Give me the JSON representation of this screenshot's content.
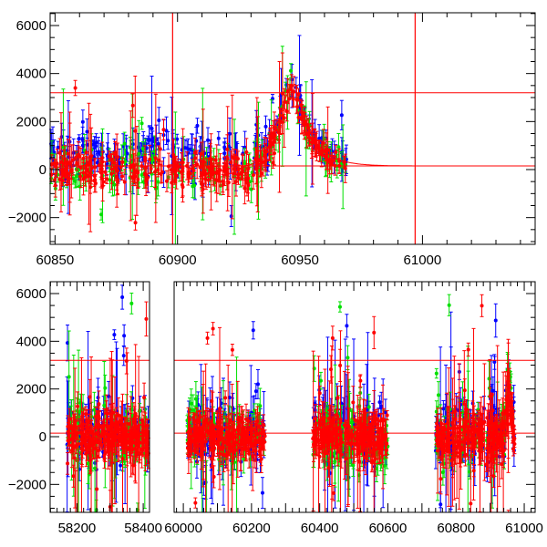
{
  "chart_data": [
    {
      "type": "scatter",
      "panel": "top",
      "title": "",
      "xlabel": "",
      "ylabel": "",
      "xlim": [
        60848,
        61046
      ],
      "ylim": [
        -3120,
        6530
      ],
      "x_ticks": [
        60850,
        60900,
        60950,
        61000
      ],
      "x_tick_labels": [
        "60850",
        "60900",
        "60950",
        "61000"
      ],
      "y_ticks": [
        -2000,
        0,
        2000,
        4000,
        6000
      ],
      "y_tick_labels": [
        "−2000",
        "0",
        "2000",
        "4000",
        "6000"
      ],
      "reference_lines": {
        "horizontal": [
          3200,
          150
        ],
        "vertical": [
          60898,
          60997
        ]
      },
      "model_curve": {
        "baseline": 150,
        "peak_x": 60948,
        "peak_y": 3550,
        "rise_width": 9,
        "decay_scale": 7
      },
      "data_range": [
        60848,
        60969
      ],
      "series": [
        {
          "name": "blue band",
          "color": "#0000ff",
          "offset": 650,
          "scatter": 450,
          "n": 220
        },
        {
          "name": "green band",
          "color": "#00e000",
          "offset": 0,
          "scatter": 500,
          "n": 160
        },
        {
          "name": "red band",
          "color": "#ff0000",
          "offset": 0,
          "scatter": 350,
          "n": 320
        }
      ]
    },
    {
      "type": "scatter",
      "panel": "bottom",
      "title": "",
      "xlabel": "",
      "ylabel": "",
      "broken_axis": [
        [
          58119,
          58419
        ],
        [
          59973,
          61032
        ]
      ],
      "ylim": [
        -3200,
        6520
      ],
      "x_ticks": [
        58200,
        58400,
        60000,
        60200,
        60400,
        60600,
        60800,
        61000
      ],
      "x_tick_labels": [
        "58200",
        "58400",
        "60000",
        "60200",
        "60400",
        "60600",
        "60800",
        "61000"
      ],
      "y_ticks": [
        -2000,
        0,
        2000,
        4000,
        6000
      ],
      "y_tick_labels": [
        "−2000",
        "0",
        "2000",
        "4000",
        "6000"
      ],
      "reference_lines": {
        "horizontal": [
          3200,
          150
        ]
      },
      "seasons": [
        [
          58170,
          58420
        ],
        [
          60010,
          60240
        ],
        [
          60380,
          60600
        ],
        [
          60740,
          60972
        ]
      ],
      "series": [
        {
          "name": "blue band",
          "color": "#0000ff",
          "offset": 300,
          "scatter": 600,
          "n": 500
        },
        {
          "name": "green band",
          "color": "#00e000",
          "offset": 0,
          "scatter": 650,
          "n": 350
        },
        {
          "name": "red band",
          "color": "#ff0000",
          "offset": 0,
          "scatter": 450,
          "n": 900
        }
      ]
    }
  ]
}
